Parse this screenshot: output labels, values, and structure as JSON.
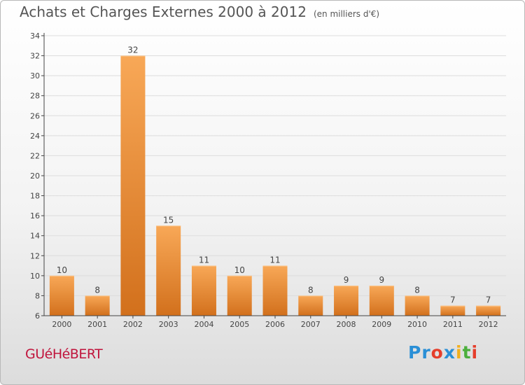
{
  "header": {
    "title": "Achats et Charges Externes 2000 à 2012",
    "subtitle": "(en milliers d'€)"
  },
  "footer": {
    "commune": "GUéHéBERT",
    "logo_letters": [
      {
        "ch": "P",
        "color": "#2a8fd6"
      },
      {
        "ch": "r",
        "color": "#2a8fd6"
      },
      {
        "ch": "o",
        "color": "#e53e2b"
      },
      {
        "ch": "x",
        "color": "#2a8fd6"
      },
      {
        "ch": "i",
        "color": "#f2b01e"
      },
      {
        "ch": "t",
        "color": "#4caf3c"
      },
      {
        "ch": "i",
        "color": "#e53e2b"
      }
    ]
  },
  "colors": {
    "bar_light": "#f8a857",
    "bar_dark": "#d2701c",
    "grid": "#dddddd",
    "axis": "#444444"
  },
  "chart_data": {
    "type": "bar",
    "categories": [
      "2000",
      "2001",
      "2002",
      "2003",
      "2004",
      "2005",
      "2006",
      "2007",
      "2008",
      "2009",
      "2010",
      "2011",
      "2012"
    ],
    "values": [
      10,
      8,
      32,
      15,
      11,
      10,
      11,
      8,
      9,
      9,
      8,
      7,
      7
    ],
    "ylim": [
      6,
      34
    ],
    "yticks": [
      6,
      8,
      10,
      12,
      14,
      16,
      18,
      20,
      22,
      24,
      26,
      28,
      30,
      32,
      34
    ],
    "grid": true,
    "data_labels": true
  }
}
